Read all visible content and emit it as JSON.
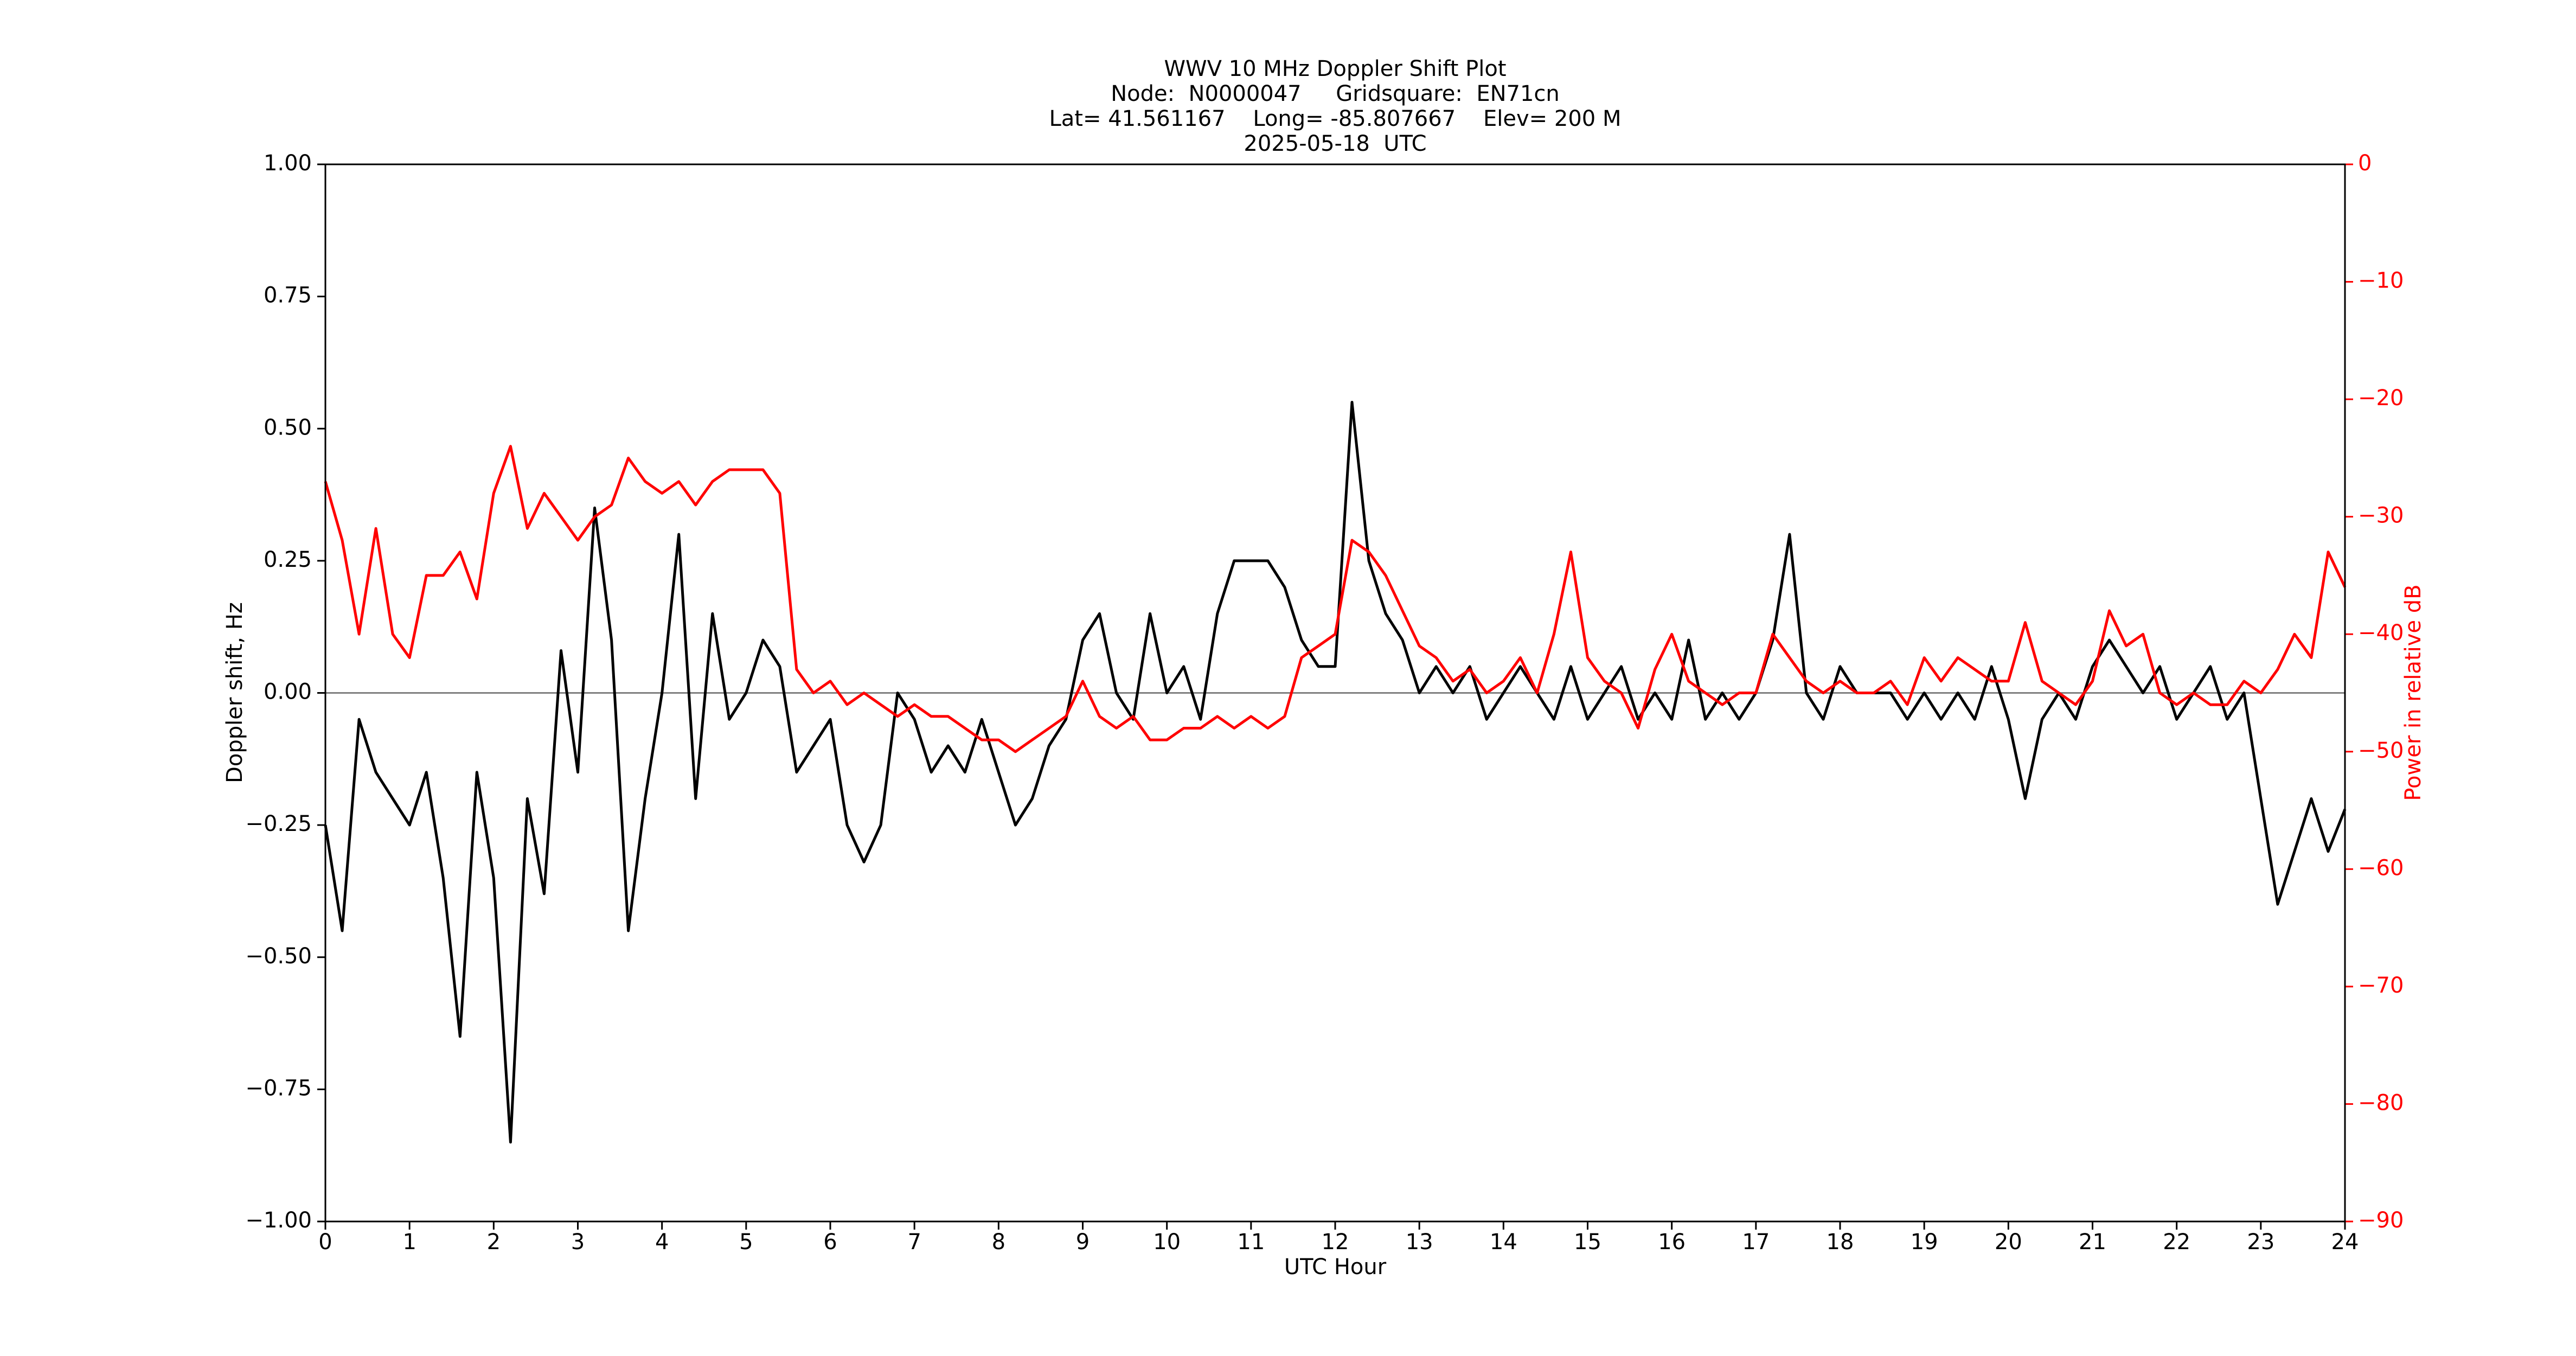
{
  "chart_data": {
    "type": "line",
    "title": [
      "WWV 10 MHz Doppler Shift Plot",
      "Node:  N0000047     Gridsquare:  EN71cn",
      "Lat= 41.561167    Long= -85.807667    Elev= 200 M",
      "2025-05-18  UTC"
    ],
    "xlabel": "UTC Hour",
    "ylabel": "Doppler shift, Hz",
    "y2label": "Power in relative dB",
    "xlim": [
      0,
      24
    ],
    "xticks": [
      0,
      1,
      2,
      3,
      4,
      5,
      6,
      7,
      8,
      9,
      10,
      11,
      12,
      13,
      14,
      15,
      16,
      17,
      18,
      19,
      20,
      21,
      22,
      23,
      24
    ],
    "ylim": [
      -1,
      1
    ],
    "yticks": [
      {
        "value": -1,
        "label": "−1.00"
      },
      {
        "value": -0.75,
        "label": "−0.75"
      },
      {
        "value": -0.5,
        "label": "−0.50"
      },
      {
        "value": -0.25,
        "label": "−0.25"
      },
      {
        "value": 0,
        "label": "0.00"
      },
      {
        "value": 0.25,
        "label": "0.25"
      },
      {
        "value": 0.5,
        "label": "0.50"
      },
      {
        "value": 0.75,
        "label": "0.75"
      },
      {
        "value": 1,
        "label": "1.00"
      }
    ],
    "y2lim": [
      -90,
      0
    ],
    "y2ticks": [
      {
        "value": -90,
        "label": "−90"
      },
      {
        "value": -80,
        "label": "−80"
      },
      {
        "value": -70,
        "label": "−70"
      },
      {
        "value": -60,
        "label": "−60"
      },
      {
        "value": -50,
        "label": "−50"
      },
      {
        "value": -40,
        "label": "−40"
      },
      {
        "value": -30,
        "label": "−30"
      },
      {
        "value": -20,
        "label": "−20"
      },
      {
        "value": -10,
        "label": "−10"
      },
      0
    ],
    "y2color": "#ff0000",
    "reference_line": 0,
    "x": [
      0,
      0.2,
      0.4,
      0.6,
      0.8,
      1,
      1.2,
      1.4,
      1.6,
      1.8,
      2,
      2.2,
      2.4,
      2.6,
      2.8,
      3,
      3.2,
      3.4,
      3.6,
      3.8,
      4,
      4.2,
      4.4,
      4.6,
      4.8,
      5,
      5.2,
      5.4,
      5.6,
      5.8,
      6,
      6.2,
      6.4,
      6.6,
      6.8,
      7,
      7.2,
      7.4,
      7.6,
      7.8,
      8,
      8.2,
      8.4,
      8.6,
      8.8,
      9,
      9.2,
      9.4,
      9.6,
      9.8,
      10,
      10.2,
      10.4,
      10.6,
      10.8,
      11,
      11.2,
      11.4,
      11.6,
      11.8,
      12,
      12.2,
      12.4,
      12.6,
      12.8,
      13,
      13.2,
      13.4,
      13.6,
      13.8,
      14,
      14.2,
      14.4,
      14.6,
      14.8,
      15,
      15.2,
      15.4,
      15.6,
      15.8,
      16,
      16.2,
      16.4,
      16.6,
      16.8,
      17,
      17.2,
      17.4,
      17.6,
      17.8,
      18,
      18.2,
      18.4,
      18.6,
      18.8,
      19,
      19.2,
      19.4,
      19.6,
      19.8,
      20,
      20.2,
      20.4,
      20.6,
      20.8,
      21,
      21.2,
      21.4,
      21.6,
      21.8,
      22,
      22.2,
      22.4,
      22.6,
      22.8,
      23,
      23.2,
      23.4,
      23.6,
      23.8,
      24
    ],
    "series": [
      {
        "color": "#000000",
        "values": [
          -0.25,
          -0.45,
          -0.05,
          -0.15,
          -0.2,
          -0.25,
          -0.15,
          -0.35,
          -0.65,
          -0.15,
          -0.35,
          -0.85,
          -0.2,
          -0.38,
          0.08,
          -0.15,
          0.35,
          0.1,
          -0.45,
          -0.2,
          0,
          0.3,
          -0.2,
          0.15,
          -0.05,
          0,
          0.1,
          0.05,
          -0.15,
          -0.1,
          -0.05,
          -0.25,
          -0.32,
          -0.25,
          0,
          -0.05,
          -0.15,
          -0.1,
          -0.15,
          -0.05,
          -0.15,
          -0.25,
          -0.2,
          -0.1,
          -0.05,
          0.1,
          0.15,
          0,
          -0.05,
          0.15,
          0,
          0.05,
          -0.05,
          0.15,
          0.25,
          0.25,
          0.25,
          0.2,
          0.1,
          0.05,
          0.05,
          0.55,
          0.25,
          0.15,
          0.1,
          0,
          0.05,
          0,
          0.05,
          -0.05,
          0,
          0.05,
          0,
          -0.05,
          0.05,
          -0.05,
          0,
          0.05,
          -0.05,
          0,
          -0.05,
          0.1,
          -0.05,
          0,
          -0.05,
          0,
          0.1,
          0.3,
          0,
          -0.05,
          0.05,
          0,
          0,
          0,
          -0.05,
          0,
          -0.05,
          0,
          -0.05,
          0.05,
          -0.05,
          -0.2,
          -0.05,
          0,
          -0.05,
          0.05,
          0.1,
          0.05,
          0,
          0.05,
          -0.05,
          0,
          0.05,
          -0.05,
          0,
          -0.2,
          -0.4,
          -0.3,
          -0.2,
          -0.3,
          -0.22
        ]
      },
      {
        "color": "#ff0000",
        "axis": "y2",
        "values": [
          -27,
          -32,
          -40,
          -31,
          -40,
          -42,
          -35,
          -35,
          -33,
          -37,
          -28,
          -24,
          -31,
          -28,
          -30,
          -32,
          -30,
          -29,
          -25,
          -27,
          -28,
          -27,
          -29,
          -27,
          -26,
          -26,
          -26,
          -28,
          -43,
          -45,
          -44,
          -46,
          -45,
          -46,
          -47,
          -46,
          -47,
          -47,
          -48,
          -49,
          -49,
          -50,
          -49,
          -48,
          -47,
          -44,
          -47,
          -48,
          -47,
          -49,
          -49,
          -48,
          -48,
          -47,
          -48,
          -47,
          -48,
          -47,
          -42,
          -41,
          -40,
          -32,
          -33,
          -35,
          -38,
          -41,
          -42,
          -44,
          -43,
          -45,
          -44,
          -42,
          -45,
          -40,
          -33,
          -42,
          -44,
          -45,
          -48,
          -43,
          -40,
          -44,
          -45,
          -46,
          -45,
          -45,
          -40,
          -42,
          -44,
          -45,
          -44,
          -45,
          -45,
          -44,
          -46,
          -42,
          -44,
          -42,
          -43,
          -44,
          -44,
          -39,
          -44,
          -45,
          -46,
          -44,
          -38,
          -41,
          -40,
          -45,
          -46,
          -45,
          -46,
          -46,
          -44,
          -45,
          -43,
          -40,
          -42,
          -33,
          -36
        ]
      }
    ]
  }
}
